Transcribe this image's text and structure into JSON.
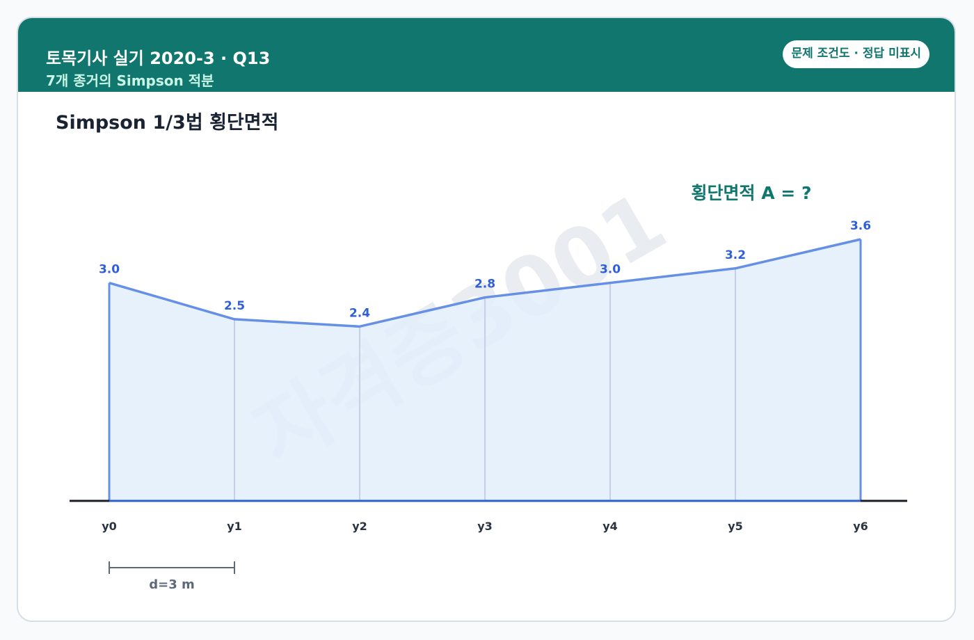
{
  "header": {
    "title": "토목기사 실기 2020-3 · Q13",
    "subtitle": "7개 종거의 Simpson 적분",
    "badge": "문제 조건도 · 정답 미표시"
  },
  "diagram": {
    "title": "Simpson 1/3법 횡단면적",
    "question": "횡단면적 A = ?",
    "watermark": "자격증3001",
    "spacing_label": "d=3 m",
    "colors": {
      "header": "#10766e",
      "profile": "#6590e6",
      "fill": "#e3eefc",
      "value_label": "#2f5fd8",
      "baseline": "#1a1f2b",
      "question": "#10766e"
    }
  },
  "chart_data": {
    "type": "area",
    "title": "Simpson 1/3법 횡단면적",
    "categories": [
      "y0",
      "y1",
      "y2",
      "y3",
      "y4",
      "y5",
      "y6"
    ],
    "values": [
      3.0,
      2.5,
      2.4,
      2.8,
      3.0,
      3.2,
      3.6
    ],
    "value_labels": [
      "3.0",
      "2.5",
      "2.4",
      "2.8",
      "3.0",
      "3.2",
      "3.6"
    ],
    "spacing_m": 3,
    "ylim": [
      0,
      3.6
    ],
    "grid": false,
    "legend": "none"
  }
}
